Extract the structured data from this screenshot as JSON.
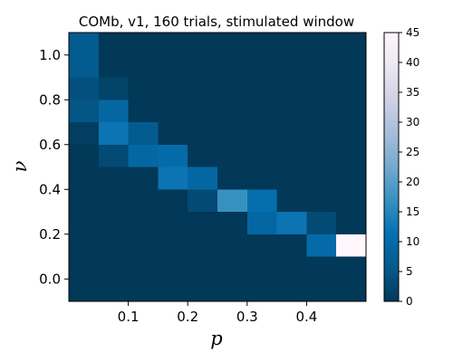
{
  "chart_data": {
    "type": "heatmap",
    "title": "COMb, v1, 160 trials, stimulated window",
    "xlabel": "p",
    "ylabel": "ν",
    "x_ticks": [
      0.1,
      0.2,
      0.3,
      0.4
    ],
    "x_tick_labels": [
      "0.1",
      "0.2",
      "0.3",
      "0.4"
    ],
    "y_ticks": [
      0.0,
      0.2,
      0.4,
      0.6,
      0.8,
      1.0
    ],
    "y_tick_labels": [
      "0.0",
      "0.2",
      "0.4",
      "0.6",
      "0.8",
      "1.0"
    ],
    "x_range": [
      0.0,
      0.5
    ],
    "y_range": [
      -0.1,
      1.1
    ],
    "cell_width": 0.05,
    "cell_height": 0.1,
    "x_centers": [
      0.025,
      0.075,
      0.125,
      0.175,
      0.225,
      0.275,
      0.325,
      0.375,
      0.425,
      0.475
    ],
    "y_centers": [
      1.05,
      0.95,
      0.85,
      0.75,
      0.65,
      0.55,
      0.45,
      0.35,
      0.25,
      0.15,
      0.05,
      -0.05
    ],
    "values": [
      [
        6,
        0,
        0,
        0,
        0,
        0,
        0,
        0,
        0,
        0
      ],
      [
        6,
        0,
        0,
        0,
        0,
        0,
        0,
        0,
        0,
        0
      ],
      [
        4,
        2,
        0,
        0,
        0,
        0,
        0,
        0,
        0,
        0
      ],
      [
        5,
        9,
        0,
        0,
        0,
        0,
        0,
        0,
        0,
        0
      ],
      [
        1,
        12,
        6,
        0,
        0,
        0,
        0,
        0,
        0,
        0
      ],
      [
        0,
        3,
        9,
        10,
        0,
        0,
        0,
        0,
        0,
        0
      ],
      [
        0,
        0,
        0,
        12,
        9,
        0,
        0,
        0,
        0,
        0
      ],
      [
        0,
        0,
        0,
        0,
        3,
        17,
        11,
        0,
        0,
        0
      ],
      [
        0,
        0,
        0,
        0,
        0,
        0,
        9,
        12,
        3,
        0
      ],
      [
        0,
        0,
        0,
        0,
        0,
        0,
        0,
        0,
        10,
        45
      ],
      [
        0,
        0,
        0,
        0,
        0,
        0,
        0,
        0,
        0,
        0
      ],
      [
        0,
        0,
        0,
        0,
        0,
        0,
        0,
        0,
        0,
        0
      ]
    ],
    "colormap": "PuBu_r",
    "colormap_stops": [
      "#023858",
      "#045a8d",
      "#0570b0",
      "#3690c0",
      "#74a9cf",
      "#a6bddb",
      "#d0d1e6",
      "#ece7f2",
      "#fff7fb"
    ],
    "colorbar": {
      "min": 0,
      "max": 45,
      "ticks": [
        0,
        5,
        10,
        15,
        20,
        25,
        30,
        35,
        40,
        45
      ],
      "tick_labels": [
        "0",
        "5",
        "10",
        "15",
        "20",
        "25",
        "30",
        "35",
        "40",
        "45"
      ]
    }
  }
}
